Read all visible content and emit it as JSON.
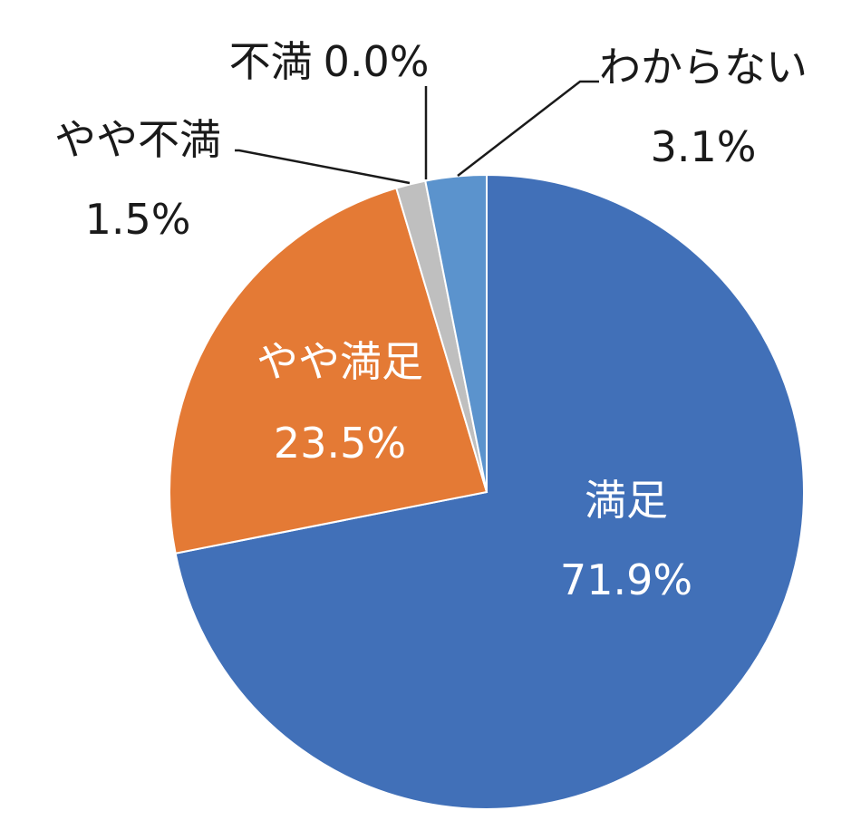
{
  "chart_data": {
    "type": "pie",
    "slices": [
      {
        "key": "satisfied",
        "category": "満足",
        "value": 71.9,
        "value_label": "71.9%",
        "color": "#4170b8"
      },
      {
        "key": "somewhat_satisfied",
        "category": "やや満足",
        "value": 23.5,
        "value_label": "23.5%",
        "color": "#e47a35"
      },
      {
        "key": "somewhat_dissatisfied",
        "category": "やや不満",
        "value": 1.5,
        "value_label": "1.5%",
        "color": "#bfbfbf"
      },
      {
        "key": "dissatisfied",
        "category": "不満",
        "value": 0.0,
        "value_label": "0.0%",
        "color": "#ffc000"
      },
      {
        "key": "unknown",
        "category": "わからない",
        "value": 3.1,
        "value_label": "3.1%",
        "color": "#5b93cd"
      }
    ],
    "start_angle": "12 o'clock",
    "direction": "clockwise",
    "legend": "none",
    "data_labels": true
  }
}
